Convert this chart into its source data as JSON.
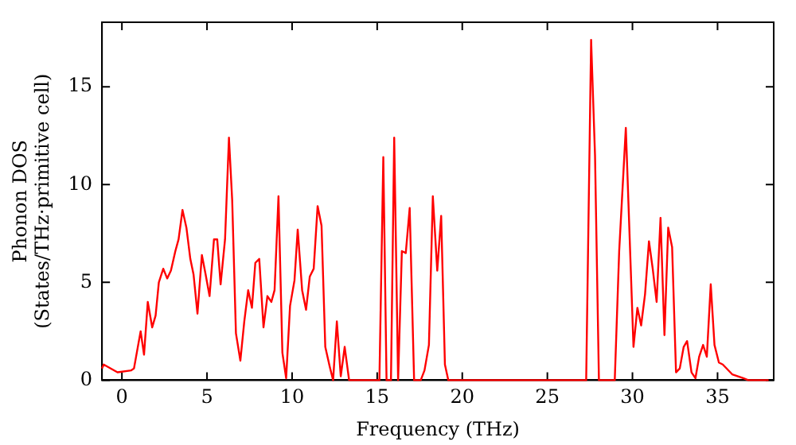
{
  "chart_data": {
    "type": "line",
    "xlabel": "Frequency (THz)",
    "ylabel": "Phonon DOS\n(States/THz·primitive cell)",
    "xlim": [
      -1.17,
      38.3
    ],
    "ylim": [
      0,
      18.3
    ],
    "xticks": [
      0,
      5,
      10,
      15,
      20,
      25,
      30,
      35
    ],
    "yticks": [
      0,
      5,
      10,
      15
    ],
    "grid": false,
    "legend": false,
    "marker": "none",
    "line_style": "solid",
    "series": [
      {
        "color": "#ff0000",
        "x": [
          -1.17,
          -1.07,
          -0.26,
          0.55,
          0.71,
          1.1,
          1.3,
          1.52,
          1.78,
          1.98,
          2.17,
          2.43,
          2.66,
          2.88,
          3.14,
          3.33,
          3.56,
          3.79,
          4.02,
          4.21,
          4.44,
          4.7,
          4.92,
          5.15,
          5.41,
          5.6,
          5.8,
          6.06,
          6.29,
          6.48,
          6.7,
          6.96,
          7.19,
          7.42,
          7.64,
          7.84,
          8.07,
          8.32,
          8.55,
          8.78,
          8.97,
          9.2,
          9.43,
          9.65,
          9.88,
          10.14,
          10.33,
          10.59,
          10.82,
          11.04,
          11.27,
          11.5,
          11.73,
          11.95,
          12.21,
          12.41,
          12.63,
          12.86,
          13.09,
          13.35,
          15.13,
          15.36,
          15.55,
          15.81,
          16.0,
          16.23,
          16.45,
          16.68,
          16.91,
          17.17,
          17.56,
          17.78,
          18.04,
          18.27,
          18.53,
          18.76,
          18.98,
          19.18,
          27.28,
          27.57,
          27.8,
          28.03,
          28.96,
          29.22,
          29.61,
          30.06,
          30.29,
          30.51,
          30.74,
          30.97,
          31.19,
          31.42,
          31.65,
          31.88,
          32.1,
          32.33,
          32.56,
          32.78,
          33.01,
          33.21,
          33.47,
          33.7,
          33.92,
          34.15,
          34.37,
          34.6,
          34.82,
          35.08,
          35.31,
          35.86,
          36.51,
          36.8,
          38.0
        ],
        "values": [
          0.6,
          0.8,
          0.4,
          0.5,
          0.6,
          2.5,
          1.3,
          4.0,
          2.7,
          3.3,
          5.0,
          5.7,
          5.2,
          5.6,
          6.6,
          7.2,
          8.7,
          7.8,
          6.2,
          5.4,
          3.4,
          6.4,
          5.4,
          4.3,
          7.2,
          7.2,
          4.9,
          7.2,
          12.4,
          9.2,
          2.4,
          1.0,
          3.0,
          4.6,
          3.7,
          6.0,
          6.2,
          2.7,
          4.3,
          4.0,
          4.6,
          9.4,
          1.4,
          0.1,
          3.8,
          5.1,
          7.7,
          4.6,
          3.6,
          5.3,
          5.7,
          8.9,
          7.9,
          1.7,
          0.7,
          0,
          3.0,
          0.2,
          1.7,
          0,
          0,
          11.4,
          0,
          0,
          12.4,
          0,
          6.6,
          6.5,
          8.8,
          0,
          0,
          0.5,
          1.8,
          9.4,
          5.6,
          8.4,
          0.8,
          0,
          0,
          17.4,
          11.5,
          0,
          0,
          6.6,
          12.9,
          1.7,
          3.7,
          2.8,
          4.4,
          7.1,
          5.7,
          4.0,
          8.3,
          2.3,
          7.8,
          6.8,
          0.4,
          0.6,
          1.7,
          2.0,
          0.4,
          0.1,
          1.2,
          1.8,
          1.2,
          4.9,
          1.8,
          0.9,
          0.8,
          0.3,
          0.1,
          0,
          0
        ]
      }
    ]
  }
}
